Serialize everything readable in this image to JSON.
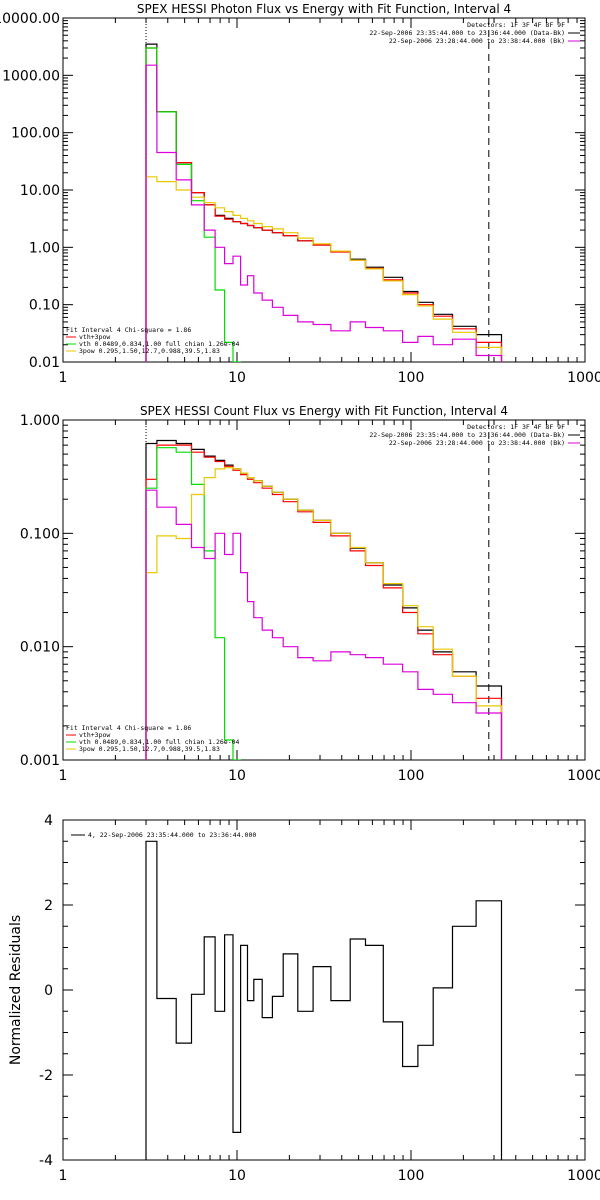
{
  "chart_data": [
    {
      "type": "line",
      "title": "SPEX HESSI Photon Flux vs Energy with Fit Function, Interval 4",
      "xscale": "log",
      "yscale": "log",
      "xlim": [
        1,
        1000
      ],
      "ylim": [
        0.01,
        10000
      ],
      "x_ticks": [
        "1",
        "10",
        "100",
        "1000"
      ],
      "y_ticks": [
        "0.01",
        "0.10",
        "1.00",
        "10.00",
        "100.00",
        "1000.00",
        "10000.00"
      ],
      "ylabel": "",
      "vlines": [
        3,
        280
      ],
      "header": [
        "Detectors: 1F 3F 4F 8F 9F",
        "22-Sep-2006 23:35:44.000 to 23:36:44.000 (Data-Bk)",
        "22-Sep-2006 23:28:44.000 to 23:38:44.000 (Bk)"
      ],
      "legend": [
        "Fit Interval 4   Chi-square = 1.86",
        "vth+3pow",
        "vth 0.0489,0.834,1.00  full chian 1.26e-04",
        "3pow 0.295,1.50,12.7,0.988,39.5,1.83"
      ],
      "series": [
        {
          "color": "#000000",
          "x": [
            3,
            4,
            5,
            6,
            7,
            8,
            9,
            10,
            11,
            12,
            13,
            15,
            17,
            20,
            25,
            30,
            40,
            50,
            60,
            80,
            100,
            120,
            150,
            200,
            280
          ],
          "y": [
            3500,
            230,
            30,
            9,
            5.5,
            3.6,
            3.2,
            2.8,
            2.6,
            2.4,
            2.2,
            2.0,
            1.8,
            1.6,
            1.3,
            1.1,
            0.85,
            0.62,
            0.45,
            0.3,
            0.17,
            0.11,
            0.068,
            0.042,
            0.03
          ]
        },
        {
          "color": "#ff0000",
          "x": [
            3,
            4,
            5,
            6,
            7,
            8,
            9,
            10,
            11,
            12,
            13,
            15,
            17,
            20,
            25,
            30,
            40,
            50,
            60,
            80,
            100,
            120,
            150,
            200,
            280
          ],
          "y": [
            3000,
            230,
            30,
            9,
            5.5,
            3.5,
            3.1,
            2.8,
            2.6,
            2.4,
            2.2,
            2.0,
            1.8,
            1.6,
            1.3,
            1.1,
            0.83,
            0.6,
            0.43,
            0.27,
            0.16,
            0.1,
            0.063,
            0.038,
            0.022
          ]
        },
        {
          "color": "#00dd00",
          "x": [
            3,
            4,
            5,
            6,
            7,
            8,
            9,
            10
          ],
          "y": [
            3000,
            230,
            28,
            6.5,
            1.5,
            0.18,
            0.022,
            0.01
          ]
        },
        {
          "color": "#e8c800",
          "x": [
            3,
            4,
            5,
            6,
            7,
            8,
            9,
            10,
            11,
            12,
            13,
            15,
            17,
            20,
            25,
            30,
            40,
            50,
            60,
            80,
            100,
            120,
            150,
            200,
            280
          ],
          "y": [
            17,
            14,
            10,
            7.5,
            6.0,
            4.9,
            4.2,
            3.6,
            3.2,
            2.9,
            2.6,
            2.3,
            2.1,
            1.8,
            1.45,
            1.15,
            0.86,
            0.6,
            0.42,
            0.26,
            0.15,
            0.095,
            0.056,
            0.033,
            0.018
          ]
        },
        {
          "color": "#dd00dd",
          "x": [
            3,
            4,
            5,
            6,
            7,
            8,
            9,
            10,
            11,
            12,
            13,
            15,
            17,
            20,
            25,
            30,
            40,
            50,
            60,
            80,
            100,
            120,
            150,
            200,
            280
          ],
          "y": [
            1500,
            45,
            15,
            5.5,
            2.0,
            1.0,
            0.52,
            0.7,
            0.22,
            0.32,
            0.16,
            0.12,
            0.09,
            0.065,
            0.05,
            0.045,
            0.035,
            0.05,
            0.04,
            0.035,
            0.022,
            0.028,
            0.02,
            0.025,
            0.013
          ]
        }
      ]
    },
    {
      "type": "line",
      "title": "SPEX HESSI Count Flux vs Energy with Fit Function, Interval 4",
      "xscale": "log",
      "yscale": "log",
      "xlim": [
        1,
        1000
      ],
      "ylim": [
        0.001,
        1.0
      ],
      "x_ticks": [
        "1",
        "10",
        "100",
        "1000"
      ],
      "y_ticks": [
        "0.001",
        "0.010",
        "0.100",
        "1.000"
      ],
      "ylabel": "",
      "vlines": [
        3,
        280
      ],
      "header": [
        "Detectors: 1F 3F 4F 8F 9F",
        "22-Sep-2006 23:35:44.000 to 23:36:44.000 (Data-Bk)",
        "22-Sep-2006 23:28:44.000 to 23:38:44.000 (Bk)"
      ],
      "legend": [
        "Fit Interval 4   Chi-square = 1.86",
        "vth+3pow",
        "vth 0.0489,0.834,1.00  full chian 1.26e-04",
        "3pow 0.295,1.50,12.7,0.988,39.5,1.83"
      ],
      "series": [
        {
          "color": "#000000",
          "x": [
            3,
            4,
            5,
            6,
            7,
            8,
            9,
            10,
            11,
            12,
            13,
            15,
            17,
            20,
            25,
            30,
            40,
            50,
            60,
            80,
            100,
            120,
            150,
            200,
            280
          ],
          "y": [
            0.62,
            0.66,
            0.62,
            0.55,
            0.48,
            0.44,
            0.4,
            0.37,
            0.34,
            0.31,
            0.29,
            0.26,
            0.23,
            0.2,
            0.16,
            0.13,
            0.1,
            0.074,
            0.055,
            0.035,
            0.022,
            0.014,
            0.009,
            0.006,
            0.0045
          ]
        },
        {
          "color": "#ff0000",
          "x": [
            3,
            4,
            5,
            6,
            7,
            8,
            9,
            10,
            11,
            12,
            13,
            15,
            17,
            20,
            25,
            30,
            40,
            50,
            60,
            80,
            100,
            120,
            150,
            200,
            280
          ],
          "y": [
            0.3,
            0.6,
            0.6,
            0.52,
            0.47,
            0.43,
            0.39,
            0.36,
            0.33,
            0.3,
            0.28,
            0.25,
            0.22,
            0.19,
            0.155,
            0.125,
            0.095,
            0.07,
            0.052,
            0.033,
            0.02,
            0.013,
            0.0085,
            0.0055,
            0.0035
          ]
        },
        {
          "color": "#00dd00",
          "x": [
            3,
            4,
            5,
            6,
            7,
            8,
            9,
            10
          ],
          "y": [
            0.25,
            0.57,
            0.52,
            0.27,
            0.07,
            0.012,
            0.0015,
            0.001
          ]
        },
        {
          "color": "#e8c800",
          "x": [
            3,
            4,
            5,
            6,
            7,
            8,
            9,
            10,
            11,
            12,
            13,
            15,
            17,
            20,
            25,
            30,
            40,
            50,
            60,
            80,
            100,
            120,
            150,
            200,
            280
          ],
          "y": [
            0.045,
            0.095,
            0.09,
            0.22,
            0.31,
            0.37,
            0.38,
            0.37,
            0.34,
            0.31,
            0.29,
            0.26,
            0.23,
            0.2,
            0.16,
            0.13,
            0.1,
            0.075,
            0.055,
            0.036,
            0.023,
            0.015,
            0.0095,
            0.0055,
            0.003
          ]
        },
        {
          "color": "#dd00dd",
          "x": [
            3,
            4,
            5,
            6,
            7,
            8,
            9,
            10,
            11,
            12,
            13,
            15,
            17,
            20,
            25,
            30,
            40,
            50,
            60,
            80,
            100,
            120,
            150,
            200,
            280
          ],
          "y": [
            0.24,
            0.17,
            0.12,
            0.075,
            0.06,
            0.1,
            0.065,
            0.1,
            0.045,
            0.025,
            0.018,
            0.014,
            0.012,
            0.01,
            0.008,
            0.0075,
            0.009,
            0.0085,
            0.008,
            0.007,
            0.006,
            0.0042,
            0.0038,
            0.0032,
            0.0026
          ]
        }
      ]
    },
    {
      "type": "line",
      "title": "",
      "xscale": "log",
      "yscale": "linear",
      "xlim": [
        1,
        1000
      ],
      "ylim": [
        -4,
        4
      ],
      "x_ticks": [
        "1",
        "10",
        "100",
        "1000"
      ],
      "y_ticks": [
        "-4",
        "-2",
        "0",
        "2",
        "4"
      ],
      "ylabel": "Normalized Residuals",
      "legend": [
        "4, 22-Sep-2006 23:35:44.000 to 23:36:44.000"
      ],
      "series": [
        {
          "color": "#000000",
          "x": [
            3,
            4,
            5,
            6,
            7,
            8,
            9,
            10,
            11,
            12,
            13,
            15,
            17,
            20,
            25,
            30,
            40,
            50,
            60,
            80,
            100,
            120,
            150,
            200,
            280
          ],
          "y": [
            3.5,
            -0.2,
            -1.25,
            -0.1,
            1.25,
            -0.5,
            1.3,
            -3.35,
            1.05,
            -0.25,
            0.25,
            -0.65,
            -0.15,
            0.85,
            -0.5,
            0.55,
            -0.25,
            1.2,
            1.05,
            -0.75,
            -1.8,
            -1.3,
            0.05,
            1.5,
            2.1
          ]
        }
      ]
    }
  ]
}
